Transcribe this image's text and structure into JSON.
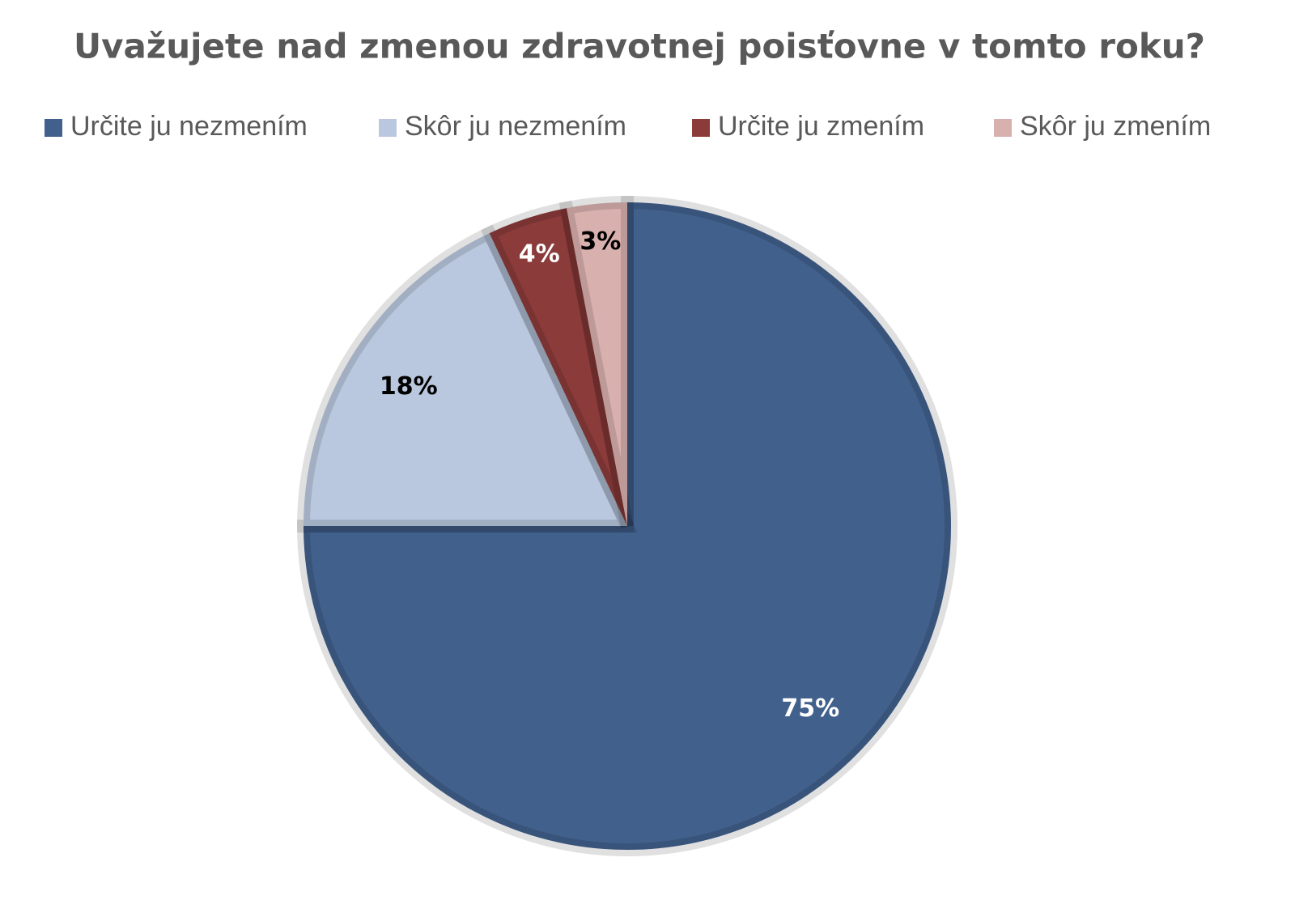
{
  "chart_data": {
    "type": "pie",
    "title": "Uvažujete nad zmenou zdravotnej poisťovne v tomto roku?",
    "categories": [
      "Určite ju nezmením",
      "Skôr ju nezmením",
      "Určite ju zmením",
      "Skôr ju zmením"
    ],
    "values": [
      75,
      18,
      4,
      3
    ],
    "value_labels": [
      "75%",
      "18%",
      "4%",
      "3%"
    ],
    "colors": [
      "#41608c",
      "#b9c8df",
      "#8a3b3a",
      "#d8b0ae"
    ],
    "label_colors": [
      "#ffffff",
      "#000000",
      "#ffffff",
      "#000000"
    ],
    "legend": "top"
  }
}
